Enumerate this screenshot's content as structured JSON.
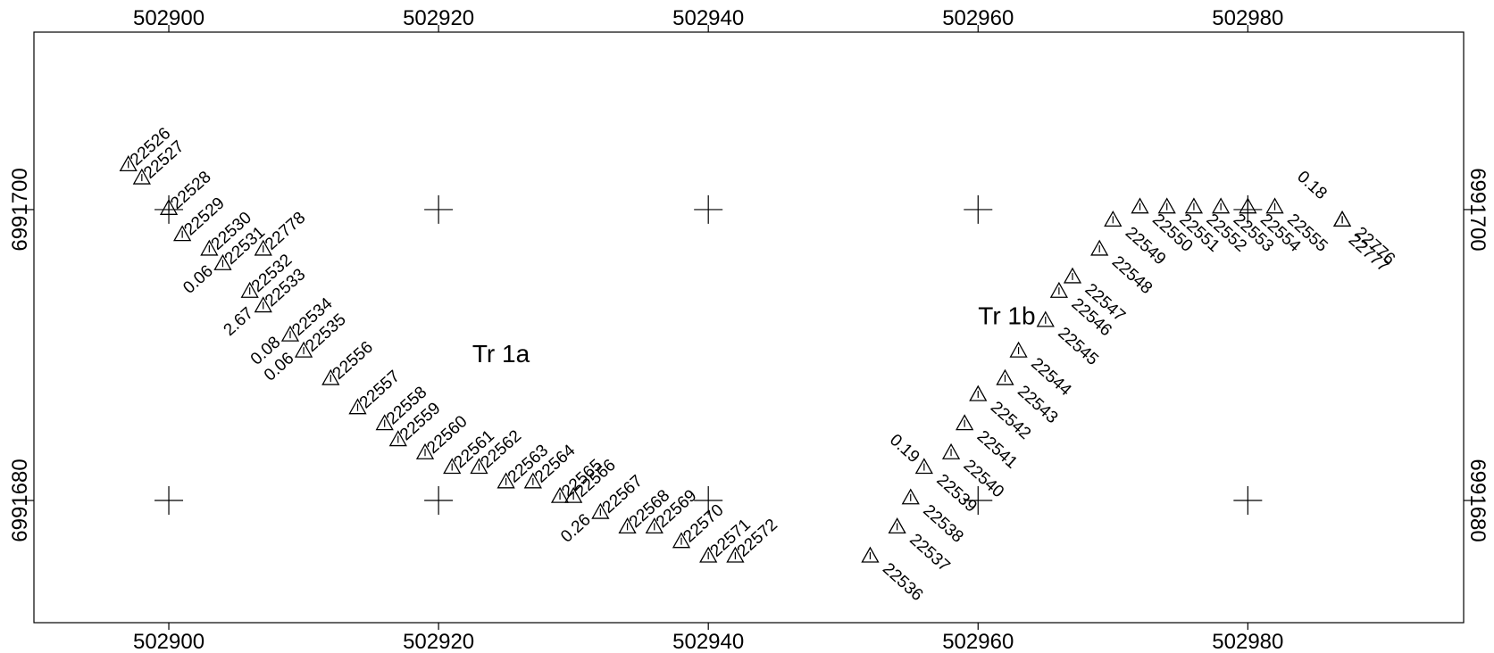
{
  "map": {
    "x_range": [
      502890,
      502996
    ],
    "y_range": [
      6991671.6,
      6991712.2
    ],
    "x_ticks": [
      "502900",
      "502920",
      "502940",
      "502960",
      "502980"
    ],
    "y_ticks": [
      "6991700",
      "6991680"
    ],
    "grid_crosses": [
      {
        "x": 502900,
        "y": 6991700
      },
      {
        "x": 502920,
        "y": 6991700
      },
      {
        "x": 502940,
        "y": 6991700
      },
      {
        "x": 502960,
        "y": 6991700
      },
      {
        "x": 502980,
        "y": 6991700
      },
      {
        "x": 502900,
        "y": 6991680
      },
      {
        "x": 502920,
        "y": 6991680
      },
      {
        "x": 502940,
        "y": 6991680
      },
      {
        "x": 502960,
        "y": 6991680
      },
      {
        "x": 502980,
        "y": 6991680
      }
    ],
    "transect_labels": [
      {
        "text": "Tr 1a",
        "x": 502922.5,
        "y": 6991689.5
      },
      {
        "text": "Tr 1b",
        "x": 502960.0,
        "y": 6991692.1
      }
    ],
    "points": [
      {
        "id": "22526",
        "x": 502897.0,
        "y": 6991703.1,
        "dir": "ne"
      },
      {
        "id": "22527",
        "x": 502898.0,
        "y": 6991702.2,
        "dir": "ne"
      },
      {
        "id": "22528",
        "x": 502900.0,
        "y": 6991700.1,
        "dir": "ne"
      },
      {
        "id": "22529",
        "x": 502901.0,
        "y": 6991698.3,
        "dir": "ne"
      },
      {
        "id": "22530",
        "x": 502903.0,
        "y": 6991697.3,
        "dir": "ne"
      },
      {
        "id": "22531",
        "x": 502904.0,
        "y": 6991696.3,
        "dir": "ne",
        "note": "0.06"
      },
      {
        "id": "22778",
        "x": 502907.0,
        "y": 6991697.3,
        "dir": "ne"
      },
      {
        "id": "22532",
        "x": 502906.0,
        "y": 6991694.4,
        "dir": "ne"
      },
      {
        "id": "22533",
        "x": 502907.0,
        "y": 6991693.4,
        "dir": "ne",
        "note": "2.67"
      },
      {
        "id": "22534",
        "x": 502909.0,
        "y": 6991691.4,
        "dir": "ne",
        "note": "0.08"
      },
      {
        "id": "22535",
        "x": 502910.0,
        "y": 6991690.3,
        "dir": "ne",
        "note": "0.06"
      },
      {
        "id": "22556",
        "x": 502912.0,
        "y": 6991688.4,
        "dir": "ne"
      },
      {
        "id": "22557",
        "x": 502914.0,
        "y": 6991686.4,
        "dir": "ne"
      },
      {
        "id": "22558",
        "x": 502916.0,
        "y": 6991685.3,
        "dir": "ne"
      },
      {
        "id": "22559",
        "x": 502917.0,
        "y": 6991684.2,
        "dir": "ne"
      },
      {
        "id": "22560",
        "x": 502919.0,
        "y": 6991683.3,
        "dir": "ne"
      },
      {
        "id": "22561",
        "x": 502921.0,
        "y": 6991682.3,
        "dir": "ne"
      },
      {
        "id": "22562",
        "x": 502923.0,
        "y": 6991682.3,
        "dir": "ne"
      },
      {
        "id": "22563",
        "x": 502925.0,
        "y": 6991681.3,
        "dir": "ne"
      },
      {
        "id": "22564",
        "x": 502927.0,
        "y": 6991681.3,
        "dir": "ne"
      },
      {
        "id": "22565",
        "x": 502929.0,
        "y": 6991680.3,
        "dir": "ne"
      },
      {
        "id": "22566",
        "x": 502930.0,
        "y": 6991680.3,
        "dir": "ne"
      },
      {
        "id": "22567",
        "x": 502932.0,
        "y": 6991679.2,
        "dir": "ne",
        "note": "0.26"
      },
      {
        "id": "22568",
        "x": 502934.0,
        "y": 6991678.2,
        "dir": "ne"
      },
      {
        "id": "22569",
        "x": 502936.0,
        "y": 6991678.2,
        "dir": "ne"
      },
      {
        "id": "22570",
        "x": 502938.0,
        "y": 6991677.2,
        "dir": "ne"
      },
      {
        "id": "22571",
        "x": 502940.0,
        "y": 6991676.2,
        "dir": "ne"
      },
      {
        "id": "22572",
        "x": 502942.0,
        "y": 6991676.2,
        "dir": "ne"
      },
      {
        "id": "22536",
        "x": 502952.0,
        "y": 6991676.2,
        "dir": "se"
      },
      {
        "id": "22537",
        "x": 502954.0,
        "y": 6991678.2,
        "dir": "se"
      },
      {
        "id": "22538",
        "x": 502955.0,
        "y": 6991680.2,
        "dir": "se"
      },
      {
        "id": "22539",
        "x": 502956.0,
        "y": 6991682.3,
        "dir": "se",
        "note": "0.19"
      },
      {
        "id": "22540",
        "x": 502958.0,
        "y": 6991683.3,
        "dir": "se"
      },
      {
        "id": "22541",
        "x": 502959.0,
        "y": 6991685.3,
        "dir": "se"
      },
      {
        "id": "22542",
        "x": 502960.0,
        "y": 6991687.3,
        "dir": "se"
      },
      {
        "id": "22543",
        "x": 502962.0,
        "y": 6991688.4,
        "dir": "se"
      },
      {
        "id": "22544",
        "x": 502963.0,
        "y": 6991690.3,
        "dir": "se"
      },
      {
        "id": "22545",
        "x": 502965.0,
        "y": 6991692.4,
        "dir": "se"
      },
      {
        "id": "22546",
        "x": 502966.0,
        "y": 6991694.4,
        "dir": "se"
      },
      {
        "id": "22547",
        "x": 502967.0,
        "y": 6991695.4,
        "dir": "se"
      },
      {
        "id": "22548",
        "x": 502969.0,
        "y": 6991697.3,
        "dir": "se"
      },
      {
        "id": "22549",
        "x": 502970.0,
        "y": 6991699.3,
        "dir": "se"
      },
      {
        "id": "22550",
        "x": 502972.0,
        "y": 6991700.2,
        "dir": "se"
      },
      {
        "id": "22551",
        "x": 502974.0,
        "y": 6991700.2,
        "dir": "se"
      },
      {
        "id": "22552",
        "x": 502976.0,
        "y": 6991700.2,
        "dir": "se"
      },
      {
        "id": "22553",
        "x": 502978.0,
        "y": 6991700.2,
        "dir": "se"
      },
      {
        "id": "22554",
        "x": 502980.0,
        "y": 6991700.2,
        "dir": "se"
      },
      {
        "id": "22555",
        "x": 502982.0,
        "y": 6991700.2,
        "dir": "se"
      },
      {
        "id": "22776",
        "x": 502987.0,
        "y": 6991699.3,
        "dir": "se"
      },
      {
        "id": "22777",
        "x": 502987.0,
        "y": 6991699.3,
        "dir": "se-far",
        "note": "0.18"
      }
    ]
  }
}
